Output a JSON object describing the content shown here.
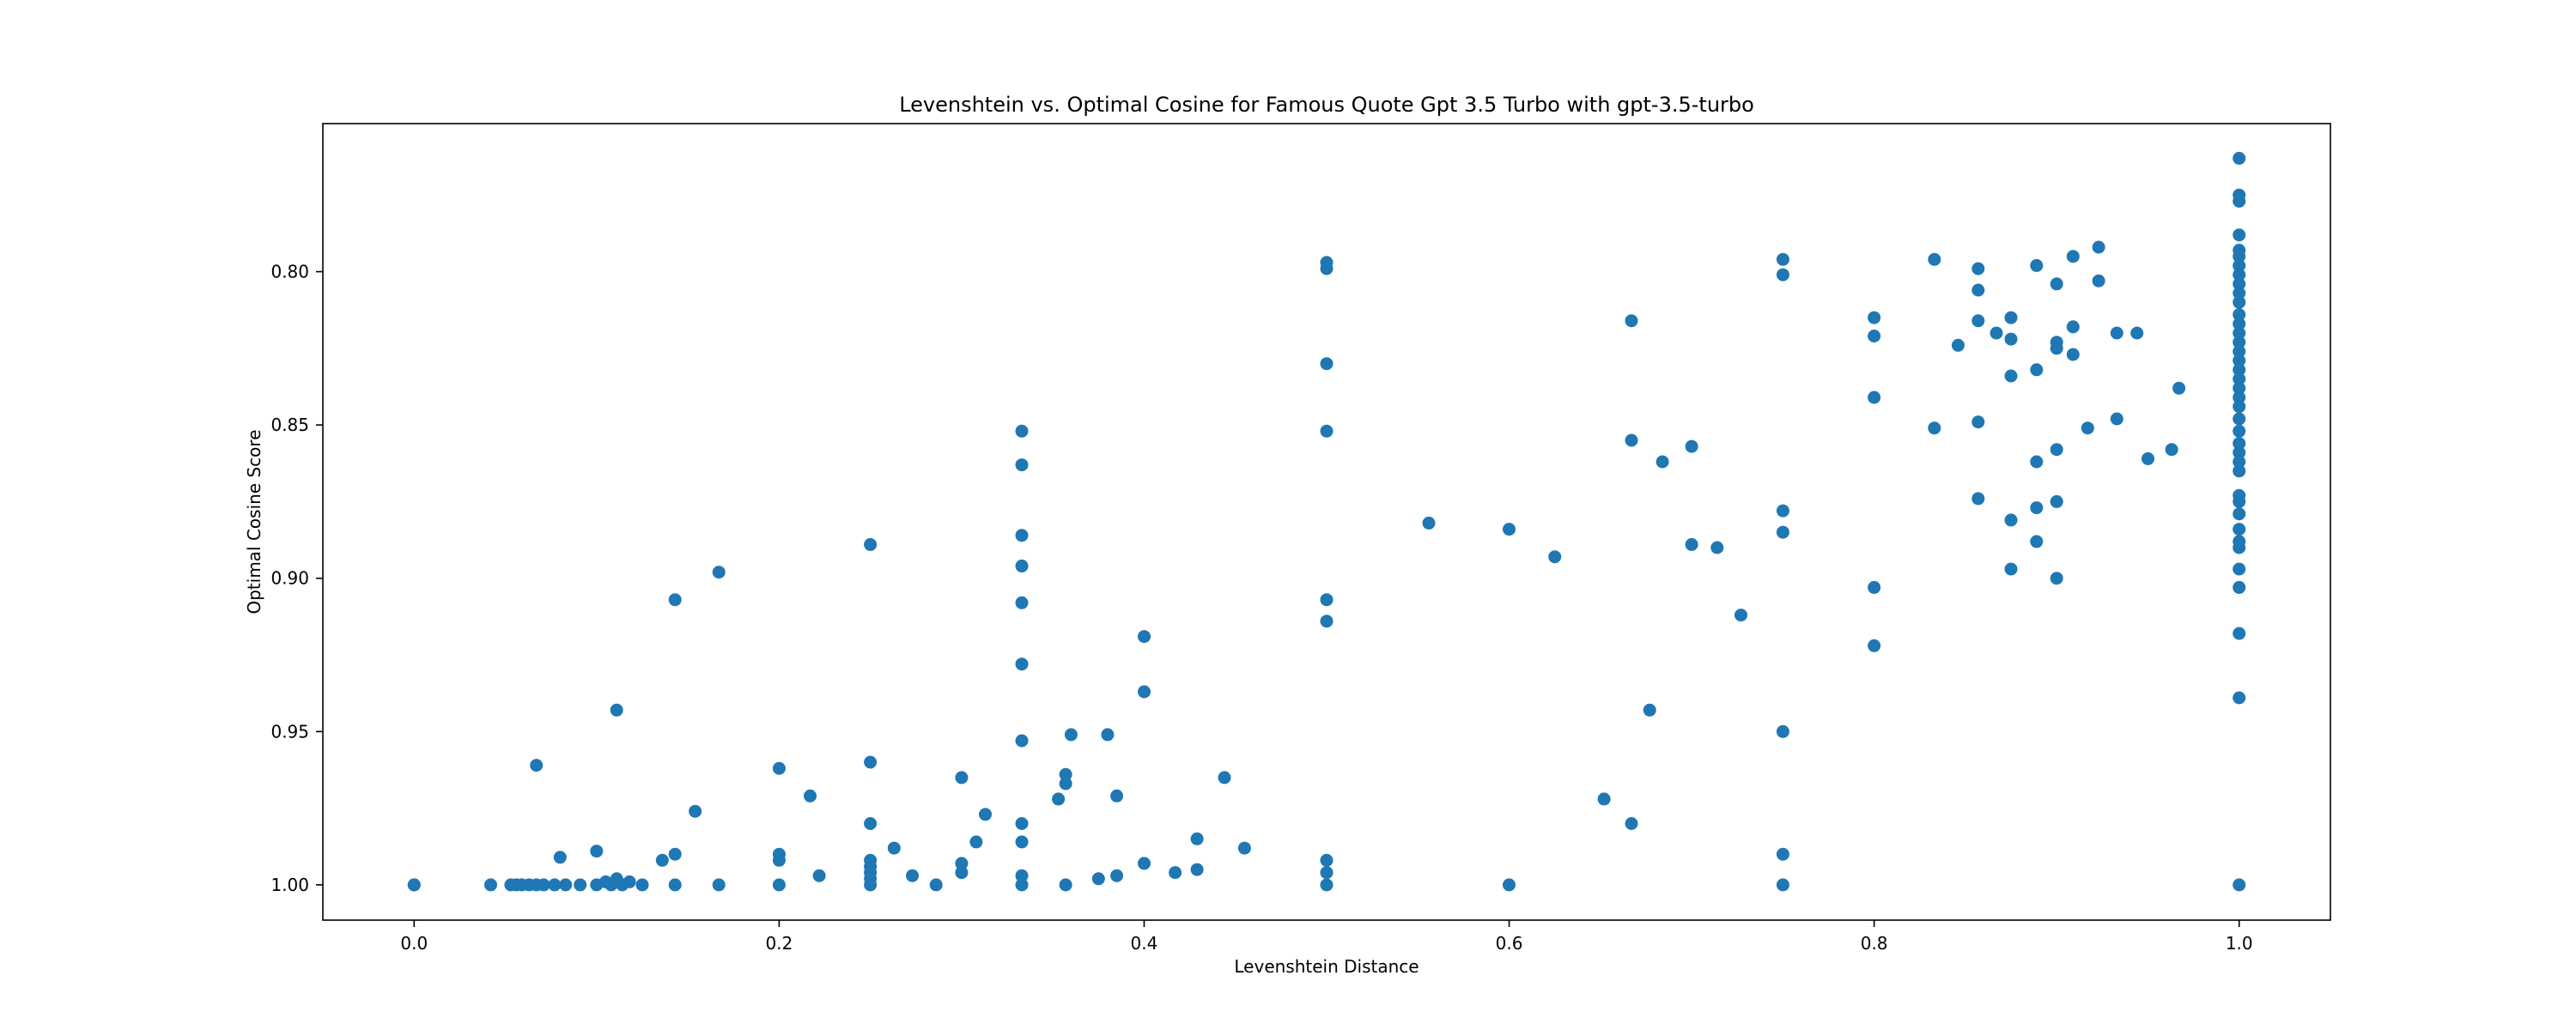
{
  "chart_data": {
    "type": "scatter",
    "title": "Levenshtein vs. Optimal Cosine for Famous Quote Gpt 3.5 Turbo with gpt-3.5-turbo",
    "xlabel": "Levenshtein Distance",
    "ylabel": "Optimal Cosine Score",
    "xlim": [
      -0.05,
      1.05
    ],
    "ylim": [
      1.0115,
      0.7517
    ],
    "y_inverted": true,
    "xticks": [
      0.0,
      0.2,
      0.4,
      0.6,
      0.8,
      1.0
    ],
    "xtick_labels": [
      "0.0",
      "0.2",
      "0.4",
      "0.6",
      "0.8",
      "1.0"
    ],
    "yticks": [
      0.8,
      0.85,
      0.9,
      0.95,
      1.0
    ],
    "ytick_labels": [
      "0.80",
      "0.85",
      "0.90",
      "0.95",
      "1.00"
    ],
    "grid": false,
    "marker_color": "#1f77b4",
    "points": [
      [
        0.0,
        1.0
      ],
      [
        0.0,
        1.0
      ],
      [
        0.042,
        1.0
      ],
      [
        0.053,
        1.0
      ],
      [
        0.056,
        1.0
      ],
      [
        0.059,
        1.0
      ],
      [
        0.063,
        1.0
      ],
      [
        0.067,
        0.961
      ],
      [
        0.067,
        1.0
      ],
      [
        0.071,
        1.0
      ],
      [
        0.077,
        1.0
      ],
      [
        0.08,
        0.991
      ],
      [
        0.083,
        1.0
      ],
      [
        0.091,
        1.0
      ],
      [
        0.1,
        0.989
      ],
      [
        0.1,
        1.0
      ],
      [
        0.105,
        0.999
      ],
      [
        0.108,
        1.0
      ],
      [
        0.111,
        0.943
      ],
      [
        0.111,
        0.998
      ],
      [
        0.114,
        1.0
      ],
      [
        0.118,
        0.999
      ],
      [
        0.125,
        1.0
      ],
      [
        0.136,
        0.992
      ],
      [
        0.143,
        0.907
      ],
      [
        0.143,
        0.99
      ],
      [
        0.143,
        1.0
      ],
      [
        0.154,
        0.976
      ],
      [
        0.167,
        0.898
      ],
      [
        0.167,
        1.0
      ],
      [
        0.2,
        0.962
      ],
      [
        0.2,
        0.99
      ],
      [
        0.2,
        0.992
      ],
      [
        0.2,
        1.0
      ],
      [
        0.217,
        0.971
      ],
      [
        0.222,
        0.997
      ],
      [
        0.25,
        0.889
      ],
      [
        0.25,
        0.96
      ],
      [
        0.25,
        0.98
      ],
      [
        0.25,
        0.992
      ],
      [
        0.25,
        0.994
      ],
      [
        0.25,
        0.996
      ],
      [
        0.25,
        0.998
      ],
      [
        0.25,
        1.0
      ],
      [
        0.263,
        0.988
      ],
      [
        0.273,
        0.997
      ],
      [
        0.286,
        1.0
      ],
      [
        0.3,
        0.965
      ],
      [
        0.3,
        0.993
      ],
      [
        0.3,
        0.996
      ],
      [
        0.308,
        0.986
      ],
      [
        0.313,
        0.977
      ],
      [
        0.333,
        0.852
      ],
      [
        0.333,
        0.863
      ],
      [
        0.333,
        0.886
      ],
      [
        0.333,
        0.896
      ],
      [
        0.333,
        0.908
      ],
      [
        0.333,
        0.928
      ],
      [
        0.333,
        0.953
      ],
      [
        0.333,
        0.98
      ],
      [
        0.333,
        0.986
      ],
      [
        0.333,
        0.997
      ],
      [
        0.333,
        1.0
      ],
      [
        0.353,
        0.972
      ],
      [
        0.357,
        0.964
      ],
      [
        0.357,
        0.967
      ],
      [
        0.357,
        1.0
      ],
      [
        0.36,
        0.951
      ],
      [
        0.375,
        0.998
      ],
      [
        0.38,
        0.951
      ],
      [
        0.385,
        0.971
      ],
      [
        0.385,
        0.997
      ],
      [
        0.4,
        0.919
      ],
      [
        0.4,
        0.937
      ],
      [
        0.4,
        0.993
      ],
      [
        0.417,
        0.996
      ],
      [
        0.429,
        0.985
      ],
      [
        0.429,
        0.995
      ],
      [
        0.444,
        0.965
      ],
      [
        0.455,
        0.988
      ],
      [
        0.5,
        0.797
      ],
      [
        0.5,
        0.799
      ],
      [
        0.5,
        0.83
      ],
      [
        0.5,
        0.852
      ],
      [
        0.5,
        0.907
      ],
      [
        0.5,
        0.914
      ],
      [
        0.5,
        0.992
      ],
      [
        0.5,
        0.996
      ],
      [
        0.5,
        1.0
      ],
      [
        0.556,
        0.882
      ],
      [
        0.6,
        0.884
      ],
      [
        0.6,
        1.0
      ],
      [
        0.625,
        0.893
      ],
      [
        0.652,
        0.972
      ],
      [
        0.667,
        0.816
      ],
      [
        0.667,
        0.855
      ],
      [
        0.667,
        0.98
      ],
      [
        0.677,
        0.943
      ],
      [
        0.684,
        0.862
      ],
      [
        0.7,
        0.857
      ],
      [
        0.7,
        0.889
      ],
      [
        0.714,
        0.89
      ],
      [
        0.727,
        0.912
      ],
      [
        0.75,
        0.796
      ],
      [
        0.75,
        0.801
      ],
      [
        0.75,
        0.878
      ],
      [
        0.75,
        0.885
      ],
      [
        0.75,
        0.95
      ],
      [
        0.75,
        0.99
      ],
      [
        0.75,
        1.0
      ],
      [
        0.8,
        0.815
      ],
      [
        0.8,
        0.821
      ],
      [
        0.8,
        0.841
      ],
      [
        0.8,
        0.903
      ],
      [
        0.8,
        0.922
      ],
      [
        0.833,
        0.796
      ],
      [
        0.833,
        0.851
      ],
      [
        0.846,
        0.824
      ],
      [
        0.857,
        0.799
      ],
      [
        0.857,
        0.806
      ],
      [
        0.857,
        0.816
      ],
      [
        0.857,
        0.849
      ],
      [
        0.857,
        0.874
      ],
      [
        0.867,
        0.82
      ],
      [
        0.875,
        0.815
      ],
      [
        0.875,
        0.822
      ],
      [
        0.875,
        0.834
      ],
      [
        0.875,
        0.881
      ],
      [
        0.875,
        0.897
      ],
      [
        0.889,
        0.798
      ],
      [
        0.889,
        0.832
      ],
      [
        0.889,
        0.862
      ],
      [
        0.889,
        0.877
      ],
      [
        0.889,
        0.888
      ],
      [
        0.9,
        0.804
      ],
      [
        0.9,
        0.823
      ],
      [
        0.9,
        0.825
      ],
      [
        0.9,
        0.858
      ],
      [
        0.9,
        0.875
      ],
      [
        0.9,
        0.9
      ],
      [
        0.909,
        0.795
      ],
      [
        0.909,
        0.818
      ],
      [
        0.909,
        0.827
      ],
      [
        0.917,
        0.851
      ],
      [
        0.923,
        0.792
      ],
      [
        0.923,
        0.803
      ],
      [
        0.933,
        0.82
      ],
      [
        0.933,
        0.848
      ],
      [
        0.944,
        0.82
      ],
      [
        0.95,
        0.861
      ],
      [
        0.963,
        0.858
      ],
      [
        0.967,
        0.838
      ],
      [
        1.0,
        0.763
      ],
      [
        1.0,
        0.775
      ],
      [
        1.0,
        0.777
      ],
      [
        1.0,
        0.788
      ],
      [
        1.0,
        0.793
      ],
      [
        1.0,
        0.795
      ],
      [
        1.0,
        0.798
      ],
      [
        1.0,
        0.801
      ],
      [
        1.0,
        0.804
      ],
      [
        1.0,
        0.807
      ],
      [
        1.0,
        0.81
      ],
      [
        1.0,
        0.814
      ],
      [
        1.0,
        0.817
      ],
      [
        1.0,
        0.82
      ],
      [
        1.0,
        0.823
      ],
      [
        1.0,
        0.826
      ],
      [
        1.0,
        0.829
      ],
      [
        1.0,
        0.832
      ],
      [
        1.0,
        0.835
      ],
      [
        1.0,
        0.838
      ],
      [
        1.0,
        0.841
      ],
      [
        1.0,
        0.844
      ],
      [
        1.0,
        0.848
      ],
      [
        1.0,
        0.852
      ],
      [
        1.0,
        0.856
      ],
      [
        1.0,
        0.859
      ],
      [
        1.0,
        0.862
      ],
      [
        1.0,
        0.865
      ],
      [
        1.0,
        0.873
      ],
      [
        1.0,
        0.875
      ],
      [
        1.0,
        0.879
      ],
      [
        1.0,
        0.884
      ],
      [
        1.0,
        0.888
      ],
      [
        1.0,
        0.89
      ],
      [
        1.0,
        0.897
      ],
      [
        1.0,
        0.903
      ],
      [
        1.0,
        0.918
      ],
      [
        1.0,
        0.939
      ],
      [
        1.0,
        1.0
      ]
    ]
  }
}
